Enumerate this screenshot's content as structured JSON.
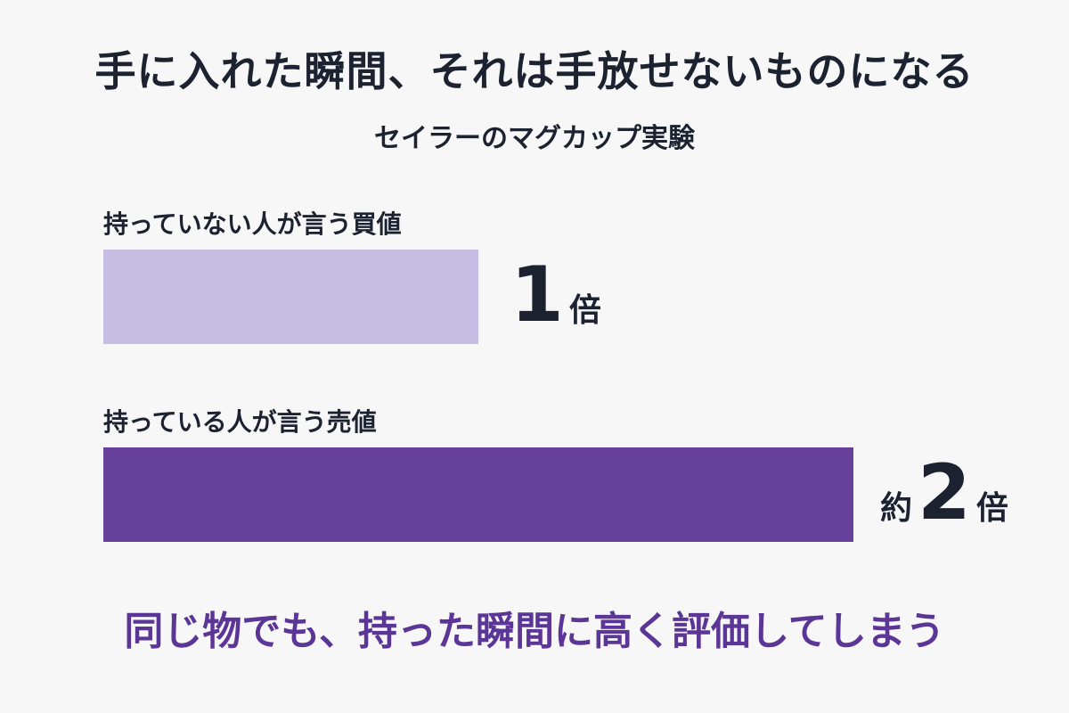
{
  "header": {
    "title": "手に入れた瞬間、それは手放せないものになる",
    "subtitle": "セイラーのマグカップ実験"
  },
  "footer": {
    "conclusion": "同じ物でも、持った瞬間に高く評価してしまう"
  },
  "chart_data": {
    "type": "bar",
    "orientation": "horizontal",
    "title": "手に入れた瞬間、それは手放せないものになる",
    "subtitle": "セイラーのマグカップ実験",
    "categories": [
      "持っていない人が言う買値",
      "持っている人が言う売値"
    ],
    "values": [
      1,
      2
    ],
    "value_labels": [
      {
        "prefix": "",
        "number": "1",
        "suffix": "倍"
      },
      {
        "prefix": "約",
        "number": "2",
        "suffix": "倍"
      }
    ],
    "colors": [
      "#c7bde3",
      "#66409a"
    ],
    "xlim": [
      0,
      2
    ],
    "grid": false,
    "legend": "none"
  }
}
